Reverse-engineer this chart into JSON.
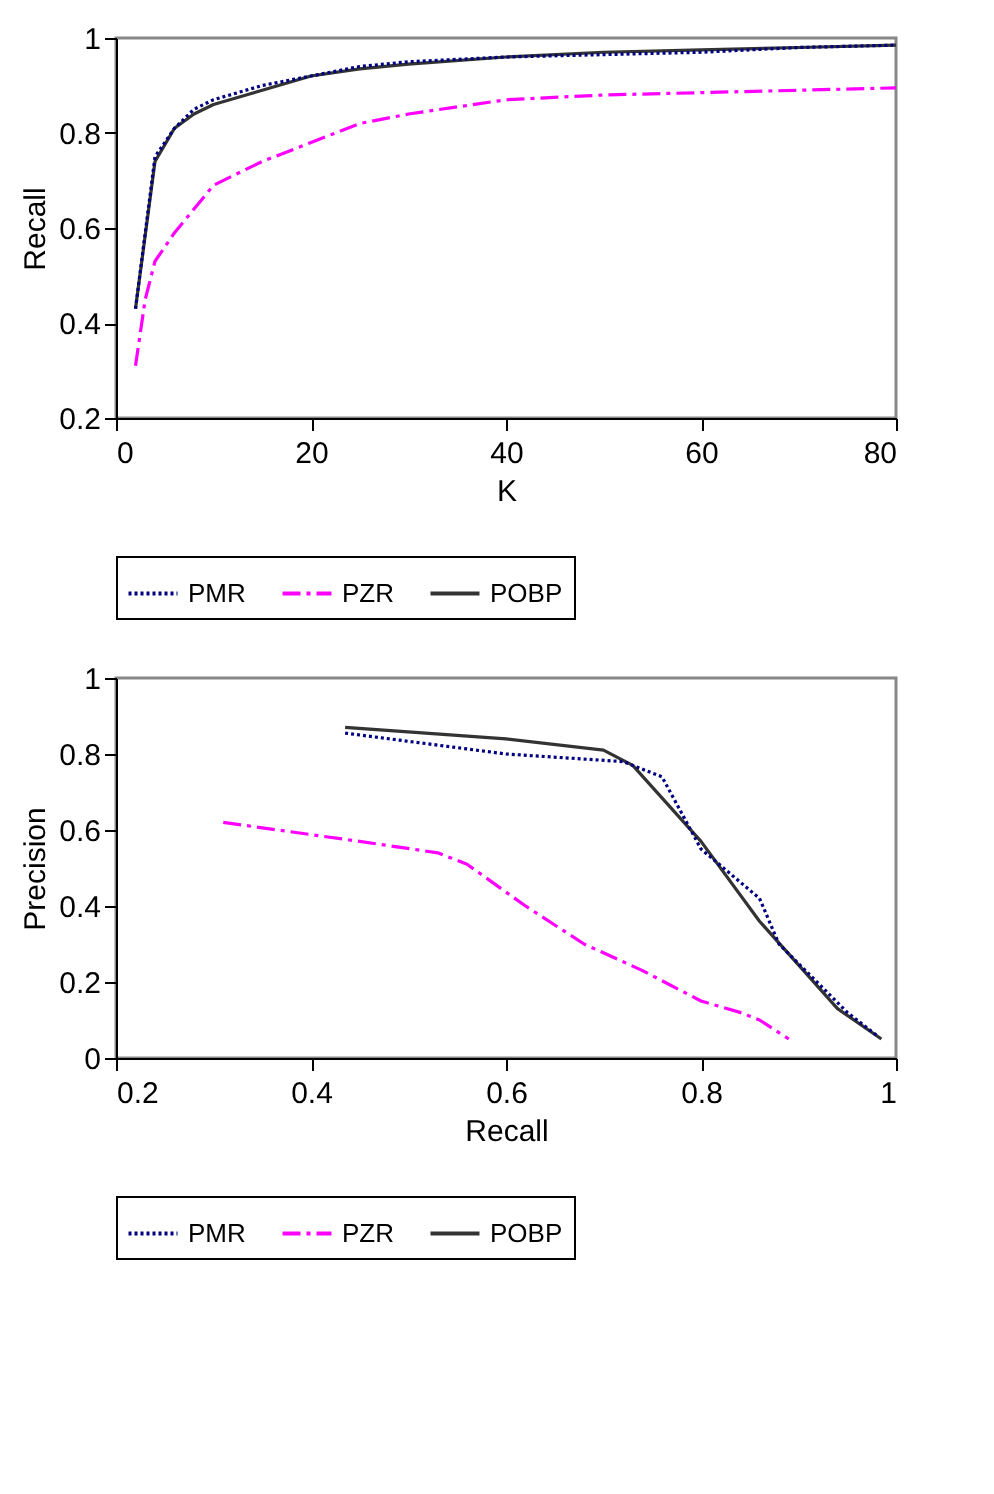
{
  "chart_data": [
    {
      "type": "line",
      "xlabel": "K",
      "ylabel": "Recall",
      "xlim": [
        0,
        80
      ],
      "xticks": [
        0,
        20,
        40,
        60,
        80
      ],
      "ylim": [
        0.2,
        1
      ],
      "yticks": [
        0.2,
        0.4,
        0.6,
        0.8,
        1
      ],
      "grid": false,
      "legend": "bottom",
      "marker": "none",
      "series": [
        {
          "name": "PMR",
          "color": "#000080",
          "line_style": "dotted",
          "x": [
            2,
            4,
            6,
            8,
            10,
            15,
            20,
            25,
            30,
            40,
            50,
            60,
            70,
            80
          ],
          "values": [
            0.43,
            0.75,
            0.81,
            0.85,
            0.87,
            0.9,
            0.92,
            0.94,
            0.95,
            0.96,
            0.965,
            0.97,
            0.98,
            0.985
          ]
        },
        {
          "name": "PZR",
          "color": "#ff00ff",
          "line_style": "dashed",
          "x": [
            2,
            3,
            4,
            6,
            8,
            10,
            15,
            20,
            25,
            30,
            40,
            50,
            60,
            80
          ],
          "values": [
            0.31,
            0.45,
            0.53,
            0.59,
            0.64,
            0.69,
            0.74,
            0.78,
            0.82,
            0.84,
            0.87,
            0.88,
            0.885,
            0.895
          ]
        },
        {
          "name": "POBP",
          "color": "#333333",
          "line_style": "solid",
          "x": [
            2,
            4,
            6,
            8,
            10,
            15,
            20,
            25,
            30,
            40,
            50,
            60,
            70,
            80
          ],
          "values": [
            0.43,
            0.74,
            0.81,
            0.84,
            0.86,
            0.89,
            0.92,
            0.935,
            0.945,
            0.96,
            0.97,
            0.975,
            0.98,
            0.985
          ]
        }
      ]
    },
    {
      "type": "line",
      "xlabel": "Recall",
      "ylabel": "Precision",
      "xlim": [
        0.2,
        1
      ],
      "xticks": [
        0.2,
        0.4,
        0.6,
        0.8,
        1
      ],
      "ylim": [
        0,
        1
      ],
      "yticks": [
        0,
        0.2,
        0.4,
        0.6,
        0.8,
        1
      ],
      "grid": false,
      "legend": "bottom",
      "marker": "none",
      "series": [
        {
          "name": "PMR",
          "color": "#000080",
          "line_style": "dotted",
          "x": [
            0.435,
            0.6,
            0.72,
            0.76,
            0.8,
            0.86,
            0.88,
            0.95,
            0.98
          ],
          "values": [
            0.855,
            0.8,
            0.78,
            0.74,
            0.55,
            0.42,
            0.3,
            0.12,
            0.06
          ]
        },
        {
          "name": "PZR",
          "color": "#ff00ff",
          "line_style": "dashed",
          "x": [
            0.31,
            0.45,
            0.53,
            0.56,
            0.62,
            0.68,
            0.74,
            0.8,
            0.84,
            0.86,
            0.89
          ],
          "values": [
            0.62,
            0.57,
            0.54,
            0.51,
            0.4,
            0.3,
            0.23,
            0.15,
            0.12,
            0.1,
            0.05
          ]
        },
        {
          "name": "POBP",
          "color": "#333333",
          "line_style": "solid",
          "x": [
            0.435,
            0.6,
            0.7,
            0.73,
            0.8,
            0.86,
            0.94,
            0.985
          ],
          "values": [
            0.87,
            0.84,
            0.81,
            0.77,
            0.57,
            0.36,
            0.13,
            0.05
          ]
        }
      ]
    }
  ]
}
